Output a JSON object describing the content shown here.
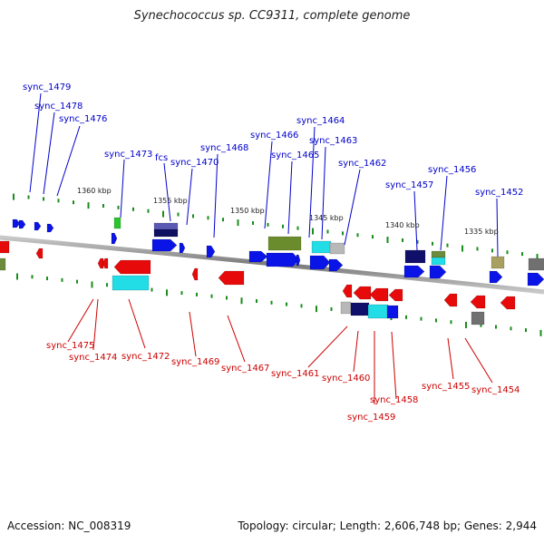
{
  "title": "Synechococcus sp. CC9311, complete genome",
  "footer": {
    "accession": "Accession: NC_008319",
    "summary": "Topology: circular; Length: 2,606,748 bp; Genes: 2,944"
  },
  "colors": {
    "forward_label": "#0000cc",
    "reverse_label": "#cc0000",
    "backbone": "#808080",
    "tick": "#1a8c1a"
  },
  "kbp_labels": [
    "1360 kbp",
    "1355 kbp",
    "1350 kbp",
    "1345 kbp",
    "1340 kbp",
    "1335 kbp"
  ],
  "forward_genes": [
    "sync_1479",
    "sync_1478",
    "sync_1476",
    "sync_1473",
    "fcs",
    "sync_1470",
    "sync_1468",
    "sync_1466",
    "sync_1465",
    "sync_1464",
    "sync_1463",
    "sync_1462",
    "sync_1457",
    "sync_1456",
    "sync_1452"
  ],
  "reverse_genes": [
    "sync_1475",
    "sync_1474",
    "sync_1472",
    "sync_1469",
    "sync_1467",
    "sync_1461",
    "sync_1460",
    "sync_1459",
    "sync_1458",
    "sync_1455",
    "sync_1454"
  ]
}
